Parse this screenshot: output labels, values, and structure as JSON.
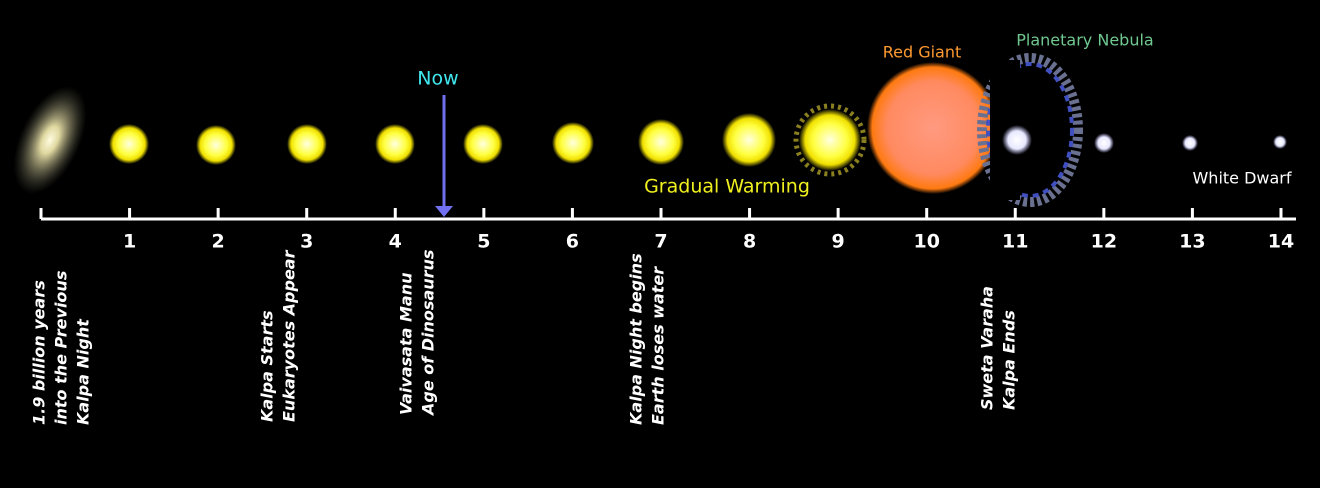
{
  "timeline": {
    "ticks": [
      "1",
      "2",
      "3",
      "4",
      "5",
      "6",
      "7",
      "8",
      "9",
      "10",
      "11",
      "12",
      "13",
      "14"
    ]
  },
  "annotations": {
    "now": "Now",
    "gradual_warming": "Gradual Warming",
    "red_giant": "Red Giant",
    "planetary_nebula": "Planetary Nebula",
    "white_dwarf": "White Dwarf"
  },
  "events": [
    {
      "lines": [
        "1.9 billion years",
        "into the Previous",
        "Kalpa Night"
      ]
    },
    {
      "lines": [
        "Kalpa Starts",
        "Eukaryotes Appear"
      ]
    },
    {
      "lines": [
        "Vaivasata Manu",
        "Age of Dinosaurus"
      ]
    },
    {
      "lines": [
        "Kalpa Night begins",
        "Earth loses water"
      ]
    },
    {
      "lines": [
        "Sweta Varaha",
        "Kalpa Ends"
      ]
    }
  ]
}
